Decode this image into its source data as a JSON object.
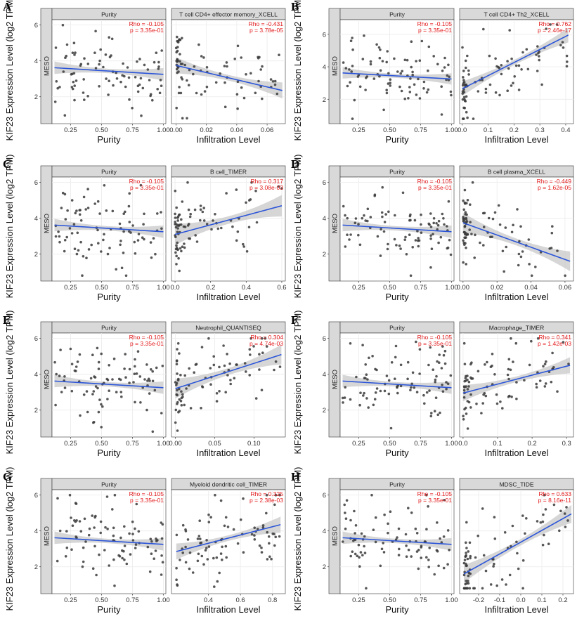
{
  "figure": {
    "shared_ylabel": "KIF23 Expression Level (log2 TPM)",
    "row_strip_label": "MESO",
    "purity_xlabel": "Purity",
    "infiltration_xlabel": "Infiltration Level"
  },
  "colors": {
    "point": "#3a3a3a",
    "line": "#2b55d9",
    "band": "#c8c8c8",
    "strip": "#d9d9d9",
    "stat": "#e41a1c",
    "grid": "#ebebeb"
  },
  "chart_data": [
    {
      "panel": "A",
      "type": "scatter",
      "ylabel": "KIF23 Expression Level (log2 TPM)",
      "row_label": "MESO",
      "yticks": [
        2,
        4,
        6
      ],
      "ylim": [
        0.5,
        6.3
      ],
      "facets": [
        {
          "title": "Purity",
          "xlabel": "Purity",
          "xlim": [
            0.1,
            1.02
          ],
          "xticks": [
            "0.25",
            "0.50",
            "0.75",
            "1.00"
          ],
          "xtick_values": [
            0.25,
            0.5,
            0.75,
            1.0
          ],
          "rho": "Rho = -0.105",
          "p": "p = 3.35e-01",
          "fit": [
            [
              0.12,
              3.62
            ],
            [
              1.0,
              3.25
            ]
          ],
          "ci": 0.35
        },
        {
          "title": "T cell CD4+ effector memory_XCELL",
          "xlabel": "Infiltration Level",
          "xlim": [
            -0.003,
            0.072
          ],
          "xticks": [
            "0.00",
            "0.02",
            "0.04",
            "0.06"
          ],
          "xtick_values": [
            0.0,
            0.02,
            0.04,
            0.06
          ],
          "rho": "Rho = -0.431",
          "p": "p = 3.78e-05",
          "fit": [
            [
              0.0,
              3.75
            ],
            [
              0.07,
              2.35
            ]
          ],
          "ci": 0.45
        }
      ]
    },
    {
      "panel": "B",
      "type": "scatter",
      "ylabel": "KIF23 Expression Level (log2 TPM)",
      "row_label": "MESO",
      "yticks": [
        2,
        4,
        6
      ],
      "ylim": [
        0.5,
        6.9
      ],
      "facets": [
        {
          "title": "Purity",
          "xlabel": "Purity",
          "xlim": [
            0.1,
            1.02
          ],
          "xticks": [
            "0.25",
            "0.50",
            "0.75",
            "1.00"
          ],
          "xtick_values": [
            0.25,
            0.5,
            0.75,
            1.0
          ],
          "rho": "Rho = -0.105",
          "p": "p = 3.35e-01",
          "fit": [
            [
              0.12,
              3.62
            ],
            [
              1.0,
              3.25
            ]
          ],
          "ci": 0.35
        },
        {
          "title": "T cell CD4+ Th2_XCELL",
          "xlabel": "Infiltration Level",
          "xlim": [
            -0.01,
            0.43
          ],
          "xticks": [
            "0.0",
            "0.1",
            "0.2",
            "0.3",
            "0.4"
          ],
          "xtick_values": [
            0.0,
            0.1,
            0.2,
            0.3,
            0.4
          ],
          "rho": "Rho = 0.762",
          "p": "p = 2.46e-17",
          "fit": [
            [
              0.0,
              2.65
            ],
            [
              0.41,
              5.95
            ]
          ],
          "ci": 0.45
        }
      ]
    },
    {
      "panel": "C",
      "type": "scatter",
      "ylabel": "KIF23 Expression Level (log2 TPM)",
      "row_label": "MESO",
      "yticks": [
        2,
        4,
        6
      ],
      "ylim": [
        0.5,
        6.3
      ],
      "facets": [
        {
          "title": "Purity",
          "xlabel": "Purity",
          "xlim": [
            0.1,
            1.02
          ],
          "xticks": [
            "0.25",
            "0.50",
            "0.75",
            "1.00"
          ],
          "xtick_values": [
            0.25,
            0.5,
            0.75,
            1.0
          ],
          "rho": "Rho = -0.105",
          "p": "p = 3.35e-01",
          "fit": [
            [
              0.12,
              3.62
            ],
            [
              1.0,
              3.25
            ]
          ],
          "ci": 0.35
        },
        {
          "title": "B cell_TIMER",
          "xlabel": "Infiltration Level",
          "xlim": [
            -0.02,
            0.62
          ],
          "xticks": [
            "0.0",
            "0.2",
            "0.4",
            "0.6"
          ],
          "xtick_values": [
            0.0,
            0.2,
            0.4,
            0.6
          ],
          "rho": "Rho = 0.317",
          "p": "p = 3.08e-03",
          "fit": [
            [
              0.0,
              3.1
            ],
            [
              0.6,
              4.7
            ]
          ],
          "ci": 0.6
        }
      ]
    },
    {
      "panel": "D",
      "type": "scatter",
      "ylabel": "KIF23 Expression Level (log2 TPM)",
      "row_label": "MESO",
      "yticks": [
        2,
        4,
        6
      ],
      "ylim": [
        0.5,
        6.3
      ],
      "facets": [
        {
          "title": "Purity",
          "xlabel": "Purity",
          "xlim": [
            0.1,
            1.02
          ],
          "xticks": [
            "0.25",
            "0.50",
            "0.75",
            "1.00"
          ],
          "xtick_values": [
            0.25,
            0.5,
            0.75,
            1.0
          ],
          "rho": "Rho = -0.105",
          "p": "p = 3.35e-01",
          "fit": [
            [
              0.12,
              3.62
            ],
            [
              1.0,
              3.25
            ]
          ],
          "ci": 0.35
        },
        {
          "title": "B cell plasma_XCELL",
          "xlabel": "Infiltration Level",
          "xlim": [
            -0.002,
            0.065
          ],
          "xticks": [
            "0.00",
            "0.02",
            "0.04",
            "0.06"
          ],
          "xtick_values": [
            0.0,
            0.02,
            0.04,
            0.06
          ],
          "rho": "Rho = -0.449",
          "p": "p = 1.62e-05",
          "fit": [
            [
              0.0,
              3.75
            ],
            [
              0.063,
              1.6
            ]
          ],
          "ci": 0.55
        }
      ]
    },
    {
      "panel": "E",
      "type": "scatter",
      "ylabel": "KIF23 Expression Level (log2 TPM)",
      "row_label": "MESO",
      "yticks": [
        2,
        4,
        6
      ],
      "ylim": [
        0.5,
        6.3
      ],
      "facets": [
        {
          "title": "Purity",
          "xlabel": "Purity",
          "xlim": [
            0.1,
            1.02
          ],
          "xticks": [
            "0.25",
            "0.50",
            "0.75",
            "1.00"
          ],
          "xtick_values": [
            0.25,
            0.5,
            0.75,
            1.0
          ],
          "rho": "Rho = -0.105",
          "p": "p = 3.35e-01",
          "fit": [
            [
              0.12,
              3.62
            ],
            [
              1.0,
              3.25
            ]
          ],
          "ci": 0.35
        },
        {
          "title": "Neutrophil_QUANTISEQ",
          "xlabel": "Infiltration Level",
          "xlim": [
            -0.005,
            0.14
          ],
          "xticks": [
            "0.00",
            "0.05",
            "0.10"
          ],
          "xtick_values": [
            0.0,
            0.05,
            0.1
          ],
          "rho": "Rho = 0.304",
          "p": "p = 4.74e-03",
          "fit": [
            [
              0.0,
              3.2
            ],
            [
              0.135,
              5.1
            ]
          ],
          "ci": 0.55
        }
      ]
    },
    {
      "panel": "F",
      "type": "scatter",
      "ylabel": "KIF23 Expression Level (log2 TPM)",
      "row_label": "MESO",
      "yticks": [
        2,
        4,
        6
      ],
      "ylim": [
        0.5,
        6.3
      ],
      "facets": [
        {
          "title": "Purity",
          "xlabel": "Purity",
          "xlim": [
            0.1,
            1.02
          ],
          "xticks": [
            "0.25",
            "0.50",
            "0.75",
            "1.00"
          ],
          "xtick_values": [
            0.25,
            0.5,
            0.75,
            1.0
          ],
          "rho": "Rho = -0.105",
          "p": "p = 3.35e-01",
          "fit": [
            [
              0.12,
              3.62
            ],
            [
              1.0,
              3.25
            ]
          ],
          "ci": 0.35
        },
        {
          "title": "Macrophage_TIMER",
          "xlabel": "Infiltration Level",
          "xlim": [
            -0.01,
            0.32
          ],
          "xticks": [
            "0.0",
            "0.1",
            "0.2",
            "0.3"
          ],
          "xtick_values": [
            0.0,
            0.1,
            0.2,
            0.3
          ],
          "rho": "Rho = 0.341",
          "p": "p = 1.42e-03",
          "fit": [
            [
              0.0,
              2.95
            ],
            [
              0.31,
              4.5
            ]
          ],
          "ci": 0.45
        }
      ]
    },
    {
      "panel": "G",
      "type": "scatter",
      "ylabel": "KIF23 Expression Level (log2 TPM)",
      "row_label": "MESO",
      "yticks": [
        2,
        4,
        6
      ],
      "ylim": [
        0.5,
        6.3
      ],
      "facets": [
        {
          "title": "Purity",
          "xlabel": "Purity",
          "xlim": [
            0.1,
            1.02
          ],
          "xticks": [
            "0.25",
            "0.50",
            "0.75",
            "1.00"
          ],
          "xtick_values": [
            0.25,
            0.5,
            0.75,
            1.0
          ],
          "rho": "Rho = -0.105",
          "p": "p = 3.35e-01",
          "fit": [
            [
              0.12,
              3.62
            ],
            [
              1.0,
              3.25
            ]
          ],
          "ci": 0.35
        },
        {
          "title": "Myeloid dendritic cell_TIMER",
          "xlabel": "Infiltration Level",
          "xlim": [
            0.17,
            0.88
          ],
          "xticks": [
            "0.4",
            "0.6",
            "0.8"
          ],
          "xtick_values": [
            0.4,
            0.6,
            0.8
          ],
          "rho": "Rho = 0.325",
          "p": "p = 2.38e-03",
          "fit": [
            [
              0.2,
              2.85
            ],
            [
              0.85,
              4.35
            ]
          ],
          "ci": 0.45
        }
      ]
    },
    {
      "panel": "H",
      "type": "scatter",
      "ylabel": "KIF23 Expression Level (log2 TPM)",
      "row_label": "MESO",
      "yticks": [
        2,
        4,
        6
      ],
      "ylim": [
        0.5,
        6.3
      ],
      "facets": [
        {
          "title": "Purity",
          "xlabel": "Purity",
          "xlim": [
            0.1,
            1.02
          ],
          "xticks": [
            "0.25",
            "0.50",
            "0.75",
            "1.00"
          ],
          "xtick_values": [
            0.25,
            0.5,
            0.75,
            1.0
          ],
          "rho": "Rho = -0.105",
          "p": "p = 3.35e-01",
          "fit": [
            [
              0.12,
              3.62
            ],
            [
              1.0,
              3.25
            ]
          ],
          "ci": 0.35
        },
        {
          "title": "MDSC_TIDE",
          "xlabel": "Infiltration Level",
          "xlim": [
            -0.29,
            0.25
          ],
          "xticks": [
            "-0.2",
            "-0.1",
            "0.0",
            "0.1",
            "0.2"
          ],
          "xtick_values": [
            -0.2,
            -0.1,
            0.0,
            0.1,
            0.2
          ],
          "rho": "Rho = 0.633",
          "p": "p = 8.16e-11",
          "fit": [
            [
              -0.27,
              1.6
            ],
            [
              0.24,
              4.95
            ]
          ],
          "ci": 0.5
        }
      ]
    }
  ]
}
